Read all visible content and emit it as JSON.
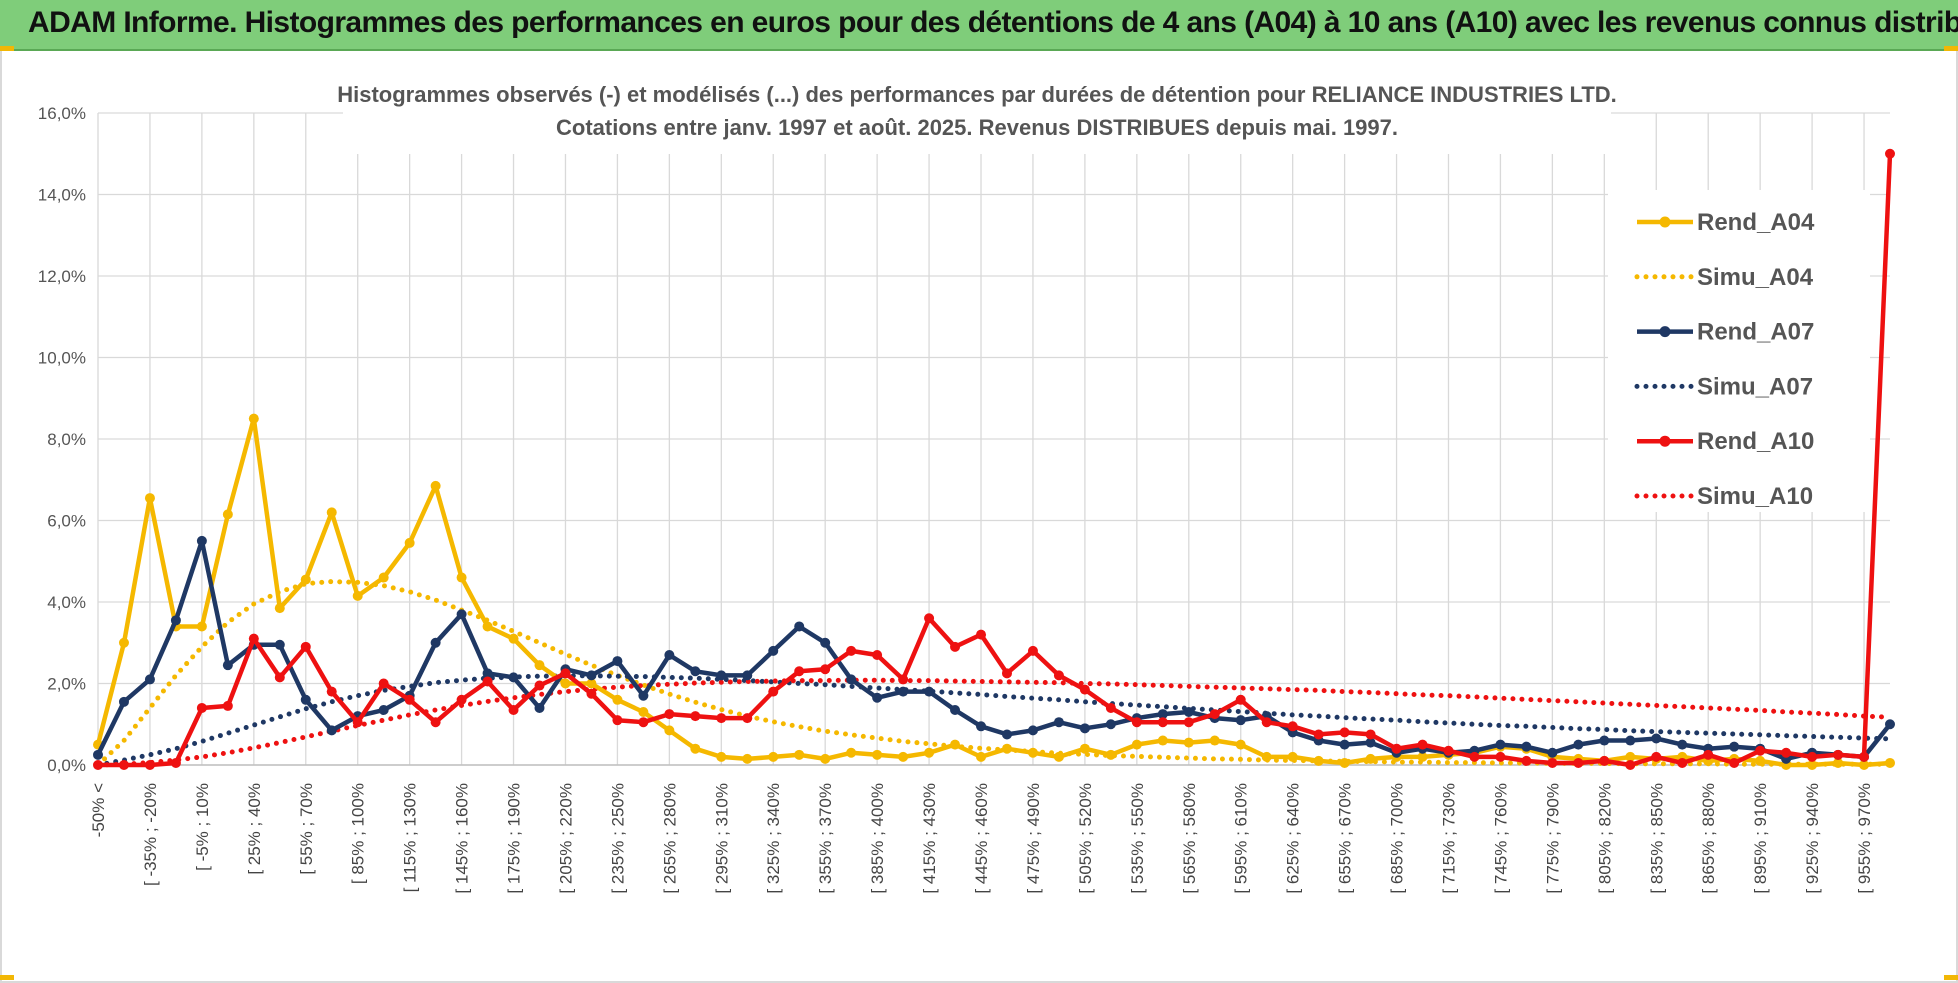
{
  "banner": {
    "title": "ADAM Informe. Histogrammes des performances en euros pour des détentions de 4 ans (A04) à 10 ans (A10) avec les revenus connus distribués"
  },
  "colors": {
    "banner_bg": "#7fcd7a",
    "A04": "#f5b800",
    "A07": "#1f3864",
    "A10": "#ee1111"
  },
  "chart_data": {
    "type": "line",
    "title": [
      "Histogrammes observés (-) et modélisés (...) des performances par durées de détention pour RELIANCE INDUSTRIES LTD.",
      "Cotations entre janv. 1997 et août. 2025. Revenus DISTRIBUES depuis mai. 1997."
    ],
    "y_ticks": [
      "0,0%",
      "2,0%",
      "4,0%",
      "6,0%",
      "8,0%",
      "10,0%",
      "12,0%",
      "14,0%",
      "16,0%"
    ],
    "ylim": [
      0,
      16
    ],
    "grid": true,
    "legend_position": "right",
    "x_tick_labels": [
      "-50% <",
      "[ -35% ; -20%",
      "[ -5% ; 10%",
      "[ 25% ; 40%",
      "[ 55% ; 70%",
      "[ 85% ; 100%",
      "[ 115% ; 130%",
      "[ 145% ; 160%",
      "[ 175% ; 190%",
      "[ 205% ; 220%",
      "[ 235% ; 250%",
      "[ 265% ; 280%",
      "[ 295% ; 310%",
      "[ 325% ; 340%",
      "[ 355% ; 370%",
      "[ 385% ; 400%",
      "[ 415% ; 430%",
      "[ 445% ; 460%",
      "[ 475% ; 490%",
      "[ 505% ; 520%",
      "[ 535% ; 550%",
      "[ 565% ; 580%",
      "[ 595% ; 610%",
      "[ 625% ; 640%",
      "[ 655% ; 670%",
      "[ 685% ; 700%",
      "[ 715% ; 730%",
      "[ 745% ; 760%",
      "[ 775% ; 790%",
      "[ 805% ; 820%",
      "[ 835% ; 850%",
      "[ 865% ; 880%",
      "[ 895% ; 910%",
      "[ 925% ; 940%",
      "[ 955% ; 970%"
    ],
    "categories_count": 70,
    "series": [
      {
        "name": "Rend_A04",
        "style": "solid",
        "color": "#f5b800",
        "values": [
          0.5,
          3.0,
          6.55,
          3.4,
          3.4,
          6.15,
          8.5,
          3.85,
          4.55,
          6.2,
          4.15,
          4.6,
          5.45,
          6.85,
          4.6,
          3.4,
          3.1,
          2.45,
          2.0,
          2.0,
          1.6,
          1.3,
          0.85,
          0.4,
          0.2,
          0.15,
          0.2,
          0.25,
          0.15,
          0.3,
          0.25,
          0.2,
          0.3,
          0.5,
          0.2,
          0.4,
          0.3,
          0.2,
          0.4,
          0.25,
          0.5,
          0.6,
          0.55,
          0.6,
          0.5,
          0.2,
          0.2,
          0.1,
          0.05,
          0.15,
          0.2,
          0.2,
          0.25,
          0.3,
          0.45,
          0.4,
          0.2,
          0.15,
          0.1,
          0.2,
          0.15,
          0.2,
          0.1,
          0.15,
          0.1,
          0.0,
          0.0,
          0.05,
          0.0,
          0.05
        ]
      },
      {
        "name": "Simu_A04",
        "style": "dotted",
        "color": "#f5b800",
        "values": [
          0.0,
          0.6,
          1.4,
          2.2,
          2.9,
          3.5,
          3.95,
          4.25,
          4.45,
          4.5,
          4.48,
          4.4,
          4.25,
          4.05,
          3.8,
          3.55,
          3.28,
          3.0,
          2.72,
          2.45,
          2.2,
          1.96,
          1.74,
          1.54,
          1.36,
          1.2,
          1.06,
          0.94,
          0.83,
          0.74,
          0.66,
          0.58,
          0.52,
          0.46,
          0.41,
          0.37,
          0.33,
          0.29,
          0.26,
          0.23,
          0.21,
          0.19,
          0.17,
          0.15,
          0.14,
          0.12,
          0.11,
          0.1,
          0.09,
          0.08,
          0.07,
          0.07,
          0.06,
          0.06,
          0.05,
          0.05,
          0.04,
          0.04,
          0.04,
          0.03,
          0.03,
          0.03,
          0.03,
          0.02,
          0.02,
          0.02,
          0.02,
          0.02,
          0.02,
          0.02
        ]
      },
      {
        "name": "Rend_A07",
        "style": "solid",
        "color": "#1f3864",
        "values": [
          0.25,
          1.55,
          2.1,
          3.55,
          5.5,
          2.45,
          2.95,
          2.95,
          1.6,
          0.85,
          1.2,
          1.35,
          1.7,
          3.0,
          3.7,
          2.25,
          2.15,
          1.4,
          2.35,
          2.2,
          2.55,
          1.7,
          2.7,
          2.3,
          2.2,
          2.2,
          2.8,
          3.4,
          3.0,
          2.1,
          1.65,
          1.8,
          1.8,
          1.35,
          0.95,
          0.75,
          0.85,
          1.05,
          0.9,
          1.0,
          1.15,
          1.25,
          1.3,
          1.15,
          1.1,
          1.2,
          0.8,
          0.6,
          0.5,
          0.55,
          0.3,
          0.4,
          0.3,
          0.35,
          0.5,
          0.45,
          0.3,
          0.5,
          0.6,
          0.6,
          0.65,
          0.5,
          0.4,
          0.45,
          0.4,
          0.15,
          0.3,
          0.25,
          0.2,
          1.0
        ]
      },
      {
        "name": "Simu_A07",
        "style": "dotted",
        "color": "#1f3864",
        "values": [
          0.0,
          0.12,
          0.25,
          0.4,
          0.58,
          0.78,
          0.98,
          1.18,
          1.38,
          1.55,
          1.7,
          1.83,
          1.93,
          2.02,
          2.08,
          2.13,
          2.16,
          2.18,
          2.19,
          2.19,
          2.18,
          2.17,
          2.15,
          2.13,
          2.1,
          2.07,
          2.04,
          2.0,
          1.97,
          1.93,
          1.89,
          1.85,
          1.81,
          1.77,
          1.73,
          1.68,
          1.64,
          1.6,
          1.55,
          1.51,
          1.47,
          1.43,
          1.39,
          1.35,
          1.31,
          1.27,
          1.23,
          1.2,
          1.16,
          1.13,
          1.1,
          1.06,
          1.03,
          1.0,
          0.97,
          0.95,
          0.92,
          0.89,
          0.87,
          0.84,
          0.82,
          0.8,
          0.78,
          0.76,
          0.74,
          0.72,
          0.7,
          0.68,
          0.66,
          0.64
        ]
      },
      {
        "name": "Rend_A10",
        "style": "solid",
        "color": "#ee1111",
        "values": [
          0.0,
          0.0,
          0.0,
          0.05,
          1.4,
          1.45,
          3.1,
          2.15,
          2.9,
          1.8,
          1.05,
          2.0,
          1.6,
          1.05,
          1.6,
          2.05,
          1.35,
          1.95,
          2.25,
          1.75,
          1.1,
          1.05,
          1.25,
          1.2,
          1.15,
          1.15,
          1.8,
          2.3,
          2.35,
          2.8,
          2.7,
          2.1,
          3.6,
          2.9,
          3.2,
          2.25,
          2.8,
          2.2,
          1.85,
          1.4,
          1.05,
          1.05,
          1.05,
          1.25,
          1.6,
          1.05,
          0.95,
          0.75,
          0.8,
          0.75,
          0.4,
          0.5,
          0.35,
          0.2,
          0.2,
          0.1,
          0.05,
          0.05,
          0.1,
          0.0,
          0.2,
          0.05,
          0.25,
          0.05,
          0.35,
          0.3,
          0.2,
          0.25,
          0.2,
          15.0
        ]
      },
      {
        "name": "Simu_A10",
        "style": "dotted",
        "color": "#ee1111",
        "values": [
          0.0,
          0.02,
          0.06,
          0.12,
          0.2,
          0.3,
          0.42,
          0.55,
          0.69,
          0.83,
          0.97,
          1.1,
          1.23,
          1.35,
          1.46,
          1.56,
          1.65,
          1.73,
          1.8,
          1.86,
          1.91,
          1.95,
          1.98,
          2.01,
          2.03,
          2.05,
          2.06,
          2.07,
          2.07,
          2.08,
          2.08,
          2.07,
          2.07,
          2.06,
          2.05,
          2.04,
          2.03,
          2.02,
          2.0,
          1.99,
          1.97,
          1.95,
          1.93,
          1.91,
          1.89,
          1.87,
          1.85,
          1.83,
          1.8,
          1.78,
          1.75,
          1.72,
          1.7,
          1.67,
          1.64,
          1.61,
          1.58,
          1.55,
          1.52,
          1.49,
          1.46,
          1.43,
          1.4,
          1.37,
          1.34,
          1.3,
          1.27,
          1.24,
          1.2,
          1.17
        ]
      }
    ]
  }
}
